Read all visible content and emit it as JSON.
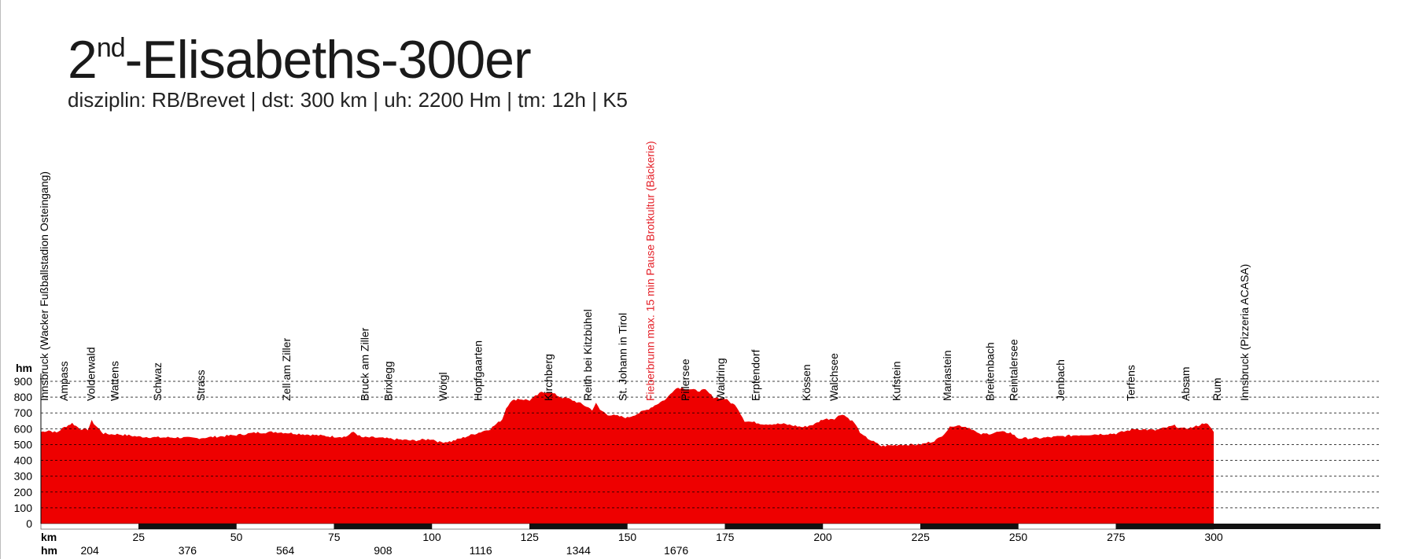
{
  "header": {
    "title_prefix": "2",
    "title_sup": "nd",
    "title_main": "-Elisabeths-300er",
    "subtitle": "disziplin: RB/Brevet | dst: 300 km | uh: 2200 Hm | tm: 12h | K5"
  },
  "chart_data": {
    "type": "area",
    "title": "2nd-Elisabeths-300er",
    "xlabel": "km",
    "ylabel": "hm",
    "secondary_xlabel": "hm",
    "xlim": [
      0,
      300
    ],
    "ylim": [
      0,
      900
    ],
    "y_ticks": [
      0,
      100,
      200,
      300,
      400,
      500,
      600,
      700,
      800,
      900
    ],
    "x_ticks": [
      25,
      50,
      75,
      100,
      125,
      150,
      175,
      200,
      225,
      250,
      275,
      300
    ],
    "climb_ticks": [
      {
        "km": 12.5,
        "label": "204"
      },
      {
        "km": 37.5,
        "label": "376"
      },
      {
        "km": 62.5,
        "label": "564"
      },
      {
        "km": 87.5,
        "label": "908"
      },
      {
        "km": 112.5,
        "label": "1116"
      },
      {
        "km": 137.5,
        "label": "1344"
      },
      {
        "km": 162.5,
        "label": "1676"
      }
    ],
    "grid": true,
    "fill_color": "#ee0000",
    "highlight_color": "#e41e26",
    "x_km": [
      0,
      2,
      4,
      6,
      8,
      10,
      12,
      13,
      14,
      16,
      18,
      20,
      25,
      30,
      35,
      40,
      45,
      50,
      55,
      60,
      65,
      70,
      75,
      78,
      80,
      82,
      85,
      90,
      95,
      100,
      102,
      105,
      110,
      115,
      118,
      119,
      120,
      121,
      122,
      125,
      128,
      130,
      133,
      135,
      138,
      140,
      141,
      142,
      143,
      145,
      150,
      155,
      160,
      162,
      163,
      165,
      168,
      170,
      172,
      175,
      178,
      180,
      185,
      190,
      195,
      198,
      200,
      203,
      205,
      208,
      210,
      215,
      220,
      225,
      228,
      229,
      230,
      233,
      235,
      237,
      238,
      240,
      243,
      245,
      248,
      250,
      255,
      260,
      265,
      270,
      275,
      280,
      285,
      290,
      292,
      295,
      298,
      300
    ],
    "y_hm": [
      580,
      590,
      575,
      610,
      635,
      600,
      595,
      650,
      620,
      570,
      565,
      565,
      550,
      545,
      545,
      540,
      550,
      560,
      575,
      580,
      570,
      560,
      550,
      550,
      580,
      545,
      545,
      535,
      525,
      535,
      515,
      520,
      560,
      600,
      660,
      730,
      770,
      780,
      790,
      780,
      830,
      835,
      800,
      790,
      760,
      735,
      720,
      760,
      720,
      690,
      670,
      720,
      790,
      850,
      860,
      855,
      840,
      845,
      800,
      790,
      740,
      650,
      630,
      630,
      610,
      630,
      660,
      665,
      695,
      640,
      560,
      490,
      500,
      500,
      520,
      530,
      545,
      620,
      620,
      610,
      600,
      565,
      570,
      580,
      575,
      540,
      540,
      550,
      560,
      565,
      570,
      600,
      590,
      620,
      600,
      610,
      640,
      580
    ],
    "waypoints": [
      {
        "km": 1,
        "name": "Innsbruck (Wacker Fußballstadion Osteingang)"
      },
      {
        "km": 6,
        "name": "Ampass"
      },
      {
        "km": 13,
        "name": "Volderwald"
      },
      {
        "km": 19,
        "name": "Wattens"
      },
      {
        "km": 30,
        "name": "Schwaz"
      },
      {
        "km": 41,
        "name": "Strass"
      },
      {
        "km": 63,
        "name": "Zell am Ziller"
      },
      {
        "km": 83,
        "name": "Bruck am Ziller"
      },
      {
        "km": 89,
        "name": "Brixlegg"
      },
      {
        "km": 103,
        "name": "Wörgl"
      },
      {
        "km": 112,
        "name": "Hopfgaarten"
      },
      {
        "km": 130,
        "name": "Kirchberg"
      },
      {
        "km": 140,
        "name": "Reith bei Kitzbühel"
      },
      {
        "km": 149,
        "name": "St. Johann in Tirol"
      },
      {
        "km": 156,
        "name": "Fieberbrunn max. 15 min Pause Brotkultur (Bäckerie)",
        "highlight": true
      },
      {
        "km": 165,
        "name": "Pillersee"
      },
      {
        "km": 174,
        "name": "Waidring"
      },
      {
        "km": 183,
        "name": "Erpfendorf"
      },
      {
        "km": 196,
        "name": "Kössen"
      },
      {
        "km": 203,
        "name": "Walchsee"
      },
      {
        "km": 219,
        "name": "Kufstein"
      },
      {
        "km": 232,
        "name": "Mariastein"
      },
      {
        "km": 243,
        "name": "Breitenbach"
      },
      {
        "km": 249,
        "name": "Reintalersee"
      },
      {
        "km": 261,
        "name": "Jenbach"
      },
      {
        "km": 279,
        "name": "Terfens"
      },
      {
        "km": 293,
        "name": "Absam"
      },
      {
        "km": 301,
        "name": "Rum"
      },
      {
        "km": 308,
        "name": "Innsbruck (Pizzeria ACASA)"
      }
    ]
  }
}
